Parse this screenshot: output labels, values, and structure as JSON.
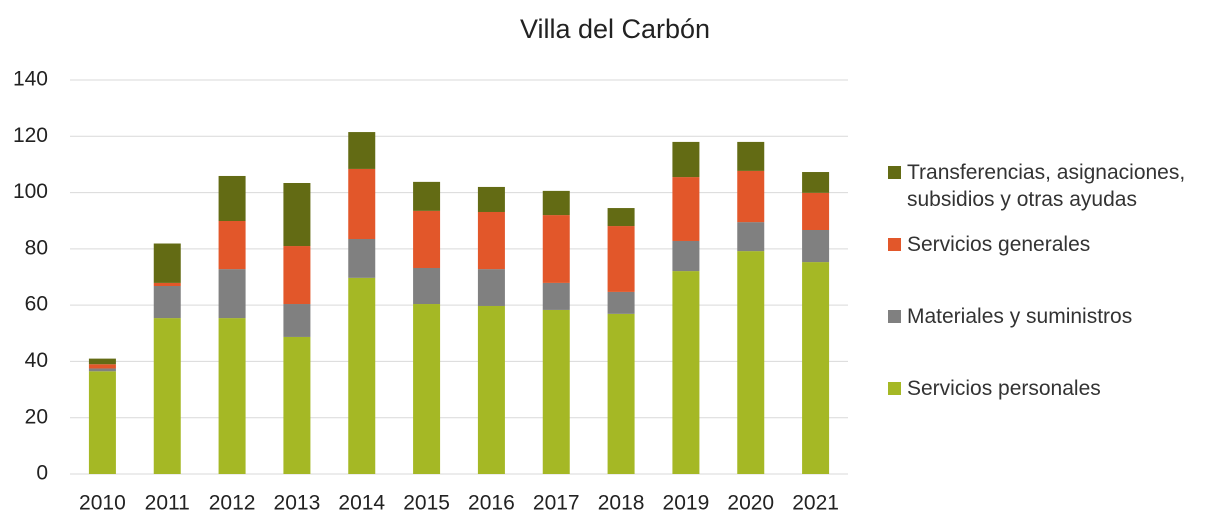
{
  "chart_data": {
    "type": "bar",
    "stacked": true,
    "title": "Villa del Carbón",
    "categories": [
      "2010",
      "2011",
      "2012",
      "2013",
      "2014",
      "2015",
      "2016",
      "2017",
      "2018",
      "2019",
      "2020",
      "2021"
    ],
    "series": [
      {
        "name": "Servicios personales",
        "color": "#a5b825",
        "values": [
          36.5,
          55.4,
          55.4,
          48.7,
          69.7,
          60.4,
          59.7,
          58.3,
          56.9,
          72.1,
          79.2,
          75.3
        ]
      },
      {
        "name": "Materiales y suministros",
        "color": "#808080",
        "values": [
          1.0,
          11.4,
          17.4,
          11.7,
          13.8,
          12.8,
          13.1,
          9.6,
          7.8,
          10.7,
          10.3,
          11.4
        ]
      },
      {
        "name": "Servicios generales",
        "color": "#e2572a",
        "values": [
          1.5,
          1.1,
          17.1,
          20.6,
          24.9,
          20.3,
          20.3,
          24.1,
          23.4,
          22.7,
          18.2,
          13.2
        ]
      },
      {
        "name": "Transferencias, asignaciones, subsidios y otras ayudas",
        "color": "#636b14",
        "values": [
          2.0,
          14.0,
          16.0,
          22.4,
          13.1,
          10.3,
          8.9,
          8.6,
          6.4,
          12.5,
          10.3,
          7.4
        ]
      }
    ],
    "ylim": [
      0,
      140
    ],
    "yticks": [
      0,
      20,
      40,
      60,
      80,
      100,
      120,
      140
    ],
    "grid": true,
    "legend": "right"
  }
}
